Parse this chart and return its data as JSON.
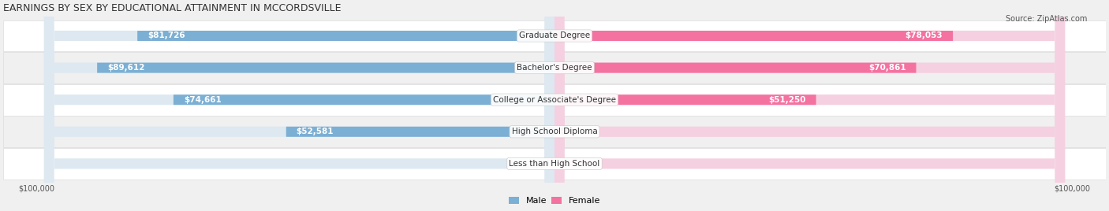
{
  "title": "EARNINGS BY SEX BY EDUCATIONAL ATTAINMENT IN MCCORDSVILLE",
  "source": "Source: ZipAtlas.com",
  "categories": [
    "Less than High School",
    "High School Diploma",
    "College or Associate's Degree",
    "Bachelor's Degree",
    "Graduate Degree"
  ],
  "male_values": [
    0,
    52581,
    74661,
    89612,
    81726
  ],
  "female_values": [
    0,
    0,
    51250,
    70861,
    78053
  ],
  "male_color": "#7bafd4",
  "female_color": "#f472a0",
  "male_label_color": "#ffffff",
  "female_label_color": "#ffffff",
  "male_zero_label_color": "#555555",
  "female_zero_label_color": "#555555",
  "max_value": 100000,
  "bg_color": "#f0f0f0",
  "bar_bg_color": "#e8e8e8",
  "row_bg_colors": [
    "#f5f5f5",
    "#eeeeee"
  ],
  "xlabel_left": "$100,000",
  "xlabel_right": "$100,000",
  "title_fontsize": 9,
  "label_fontsize": 7.5,
  "category_fontsize": 7.5,
  "source_fontsize": 7
}
